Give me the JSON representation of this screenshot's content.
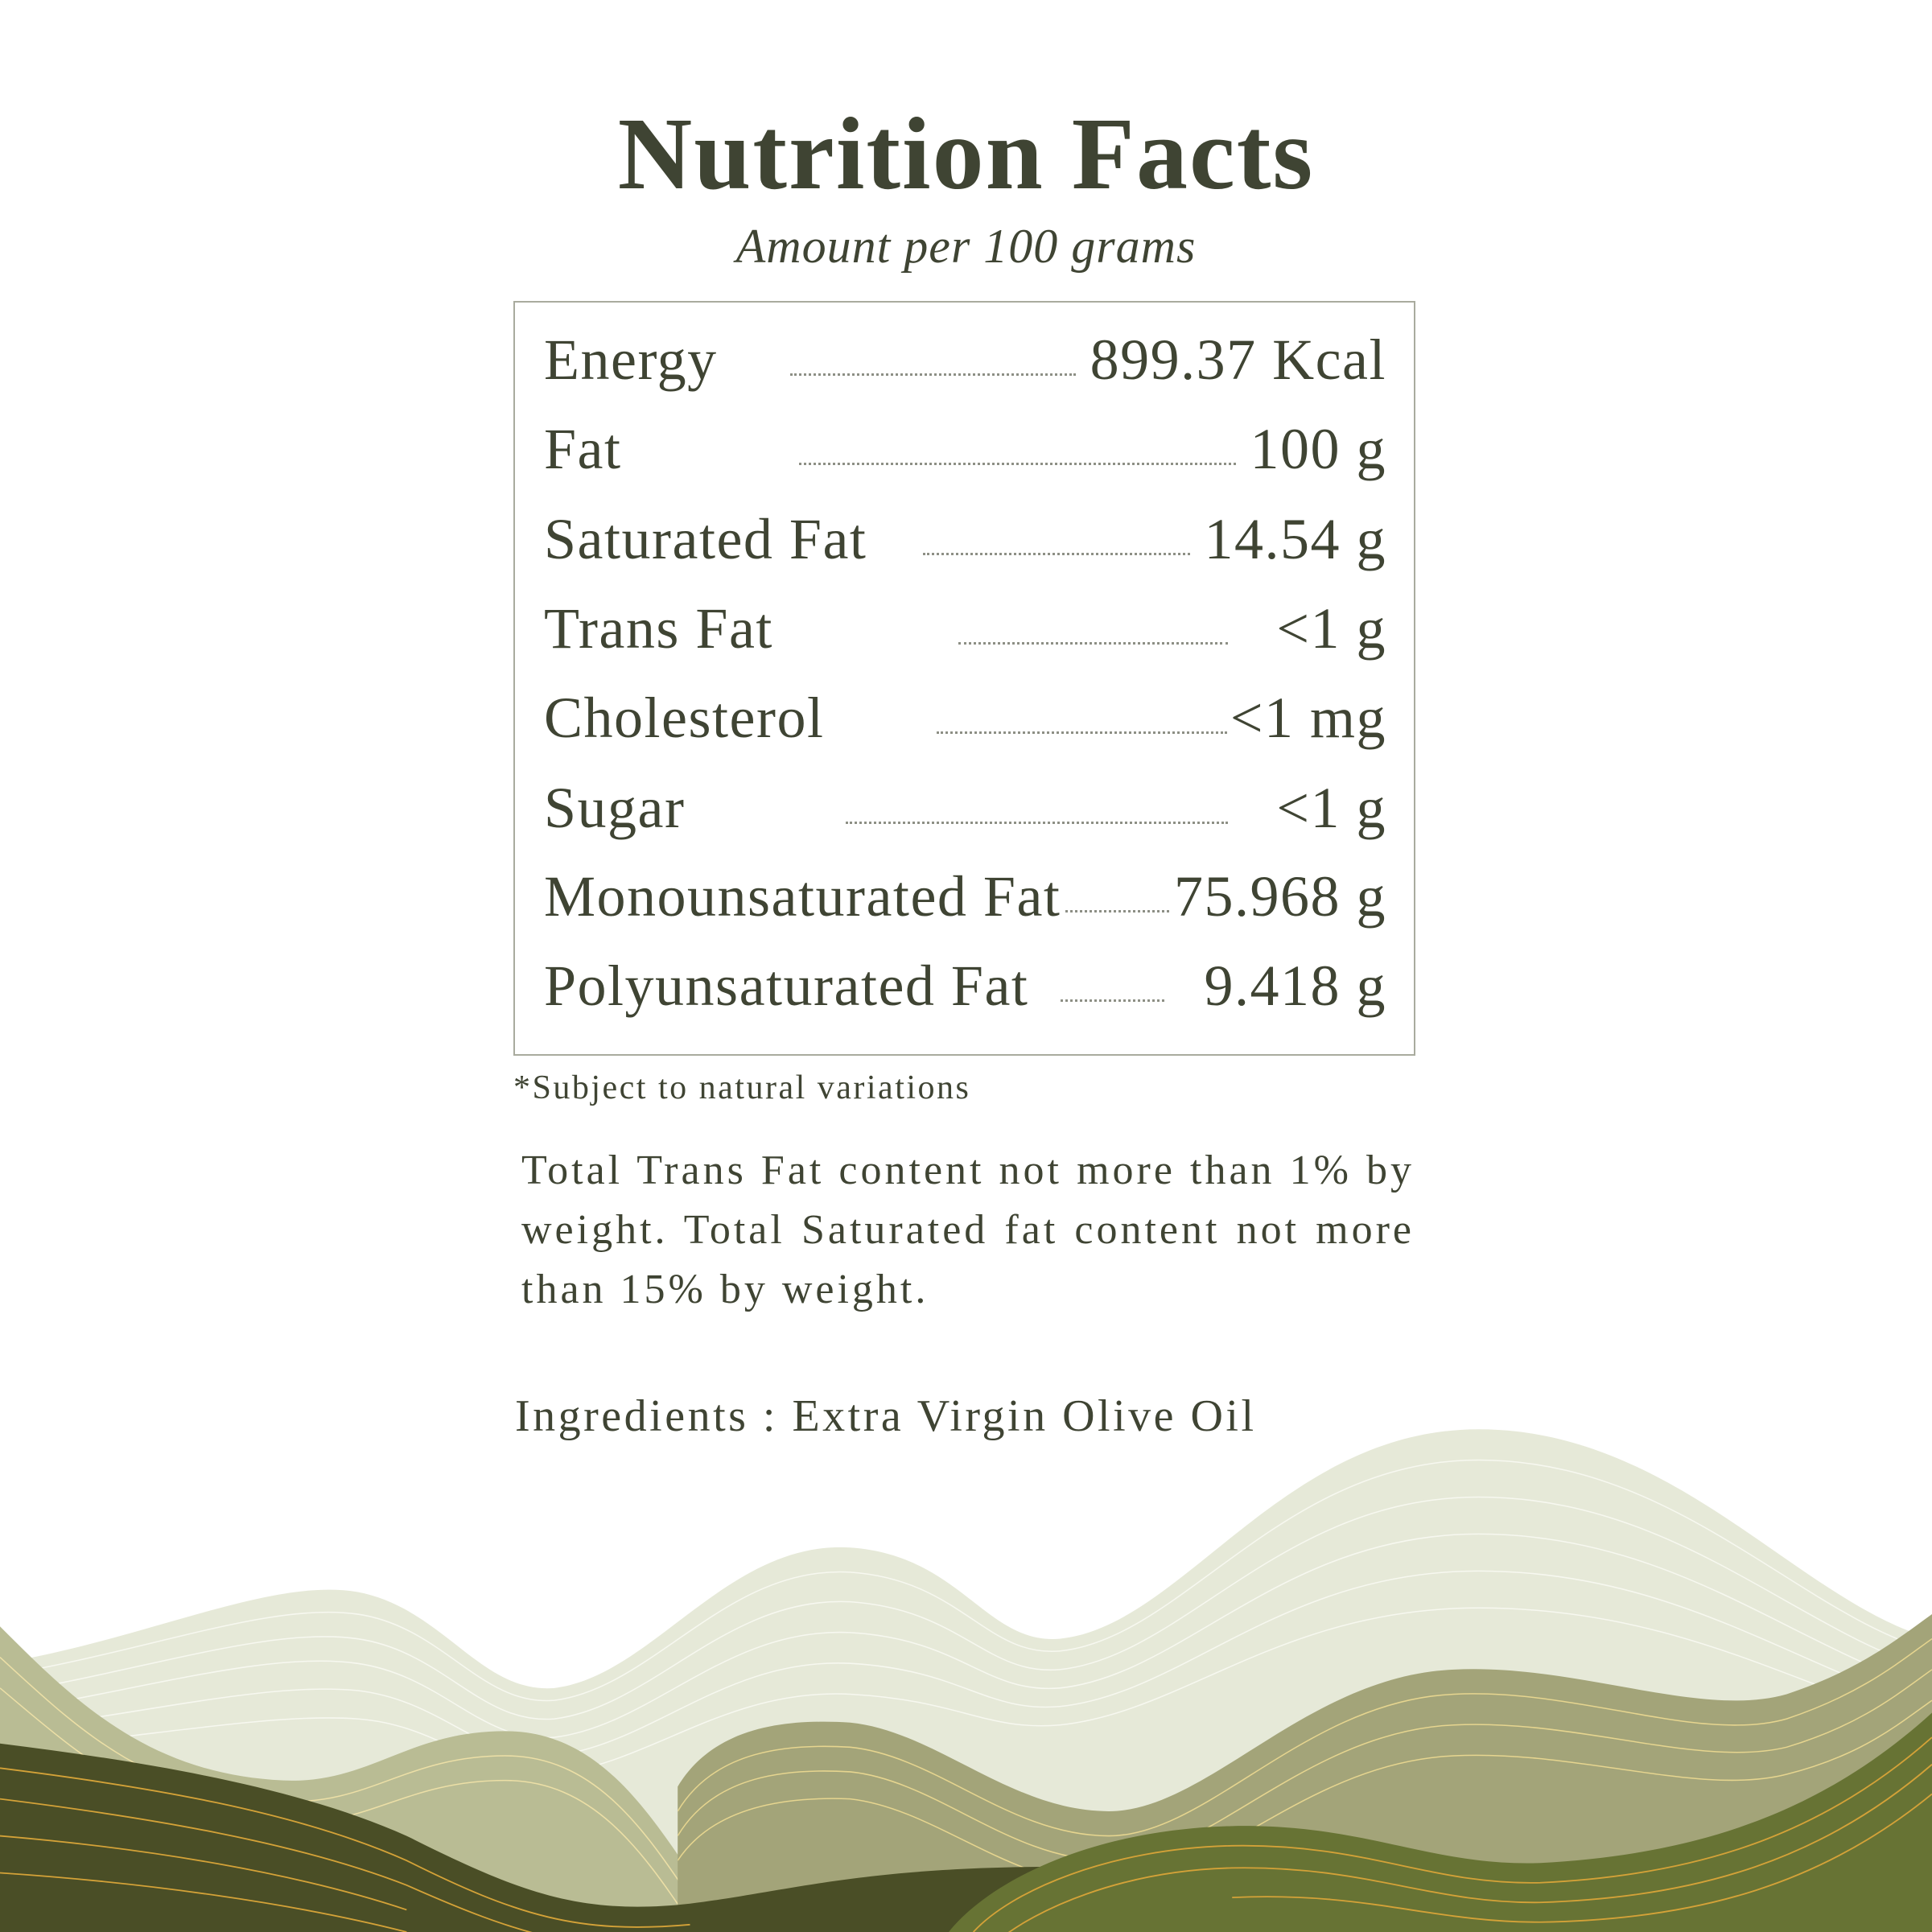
{
  "title": "Nutrition Facts",
  "subtitle": "Amount per 100 grams",
  "rows": [
    {
      "label": "Energy",
      "value": "899.37 Kcal"
    },
    {
      "label": "Fat",
      "value": "100 g"
    },
    {
      "label": "Saturated Fat",
      "value": "14.54 g"
    },
    {
      "label": "Trans Fat",
      "value": "<1 g"
    },
    {
      "label": "Cholesterol",
      "value": "<1 mg"
    },
    {
      "label": "Sugar",
      "value": "<1 g"
    },
    {
      "label": "Monounsaturated Fat",
      "value": "75.968 g"
    },
    {
      "label": "Polyunsaturated Fat",
      "value": "9.418 g"
    }
  ],
  "footnote": "*Subject to natural variations",
  "statement": "Total Trans Fat content not more than 1% by weight. Total Saturated fat content not more than 15% by weight.",
  "ingredients": "Ingredients : Extra Virgin Olive Oil",
  "colors": {
    "text": "#3f4433",
    "hill_light": "#e6e9d8",
    "hill_mid": "#b9bc94",
    "hill_olive": "#a3a479",
    "hill_dark": "#4a4e26",
    "hill_green": "#677334",
    "gold_lines": "#d4a238"
  }
}
